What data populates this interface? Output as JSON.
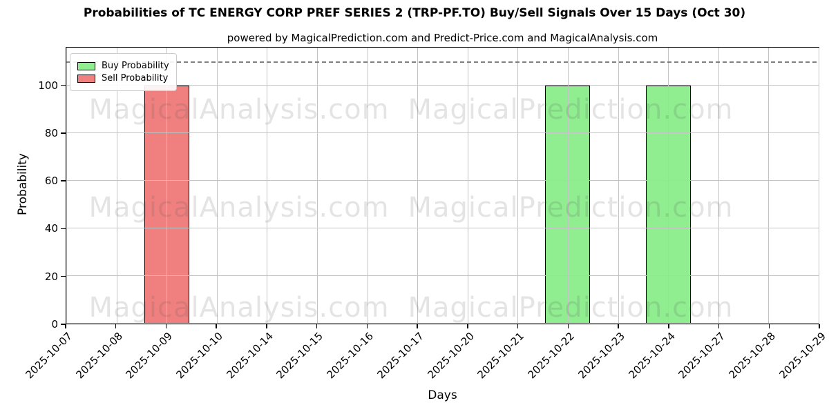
{
  "title": "Probabilities of TC ENERGY CORP PREF SERIES 2 (TRP-PF.TO) Buy/Sell Signals Over 15 Days (Oct 30)",
  "subtitle": "powered by MagicalPrediction.com and Predict-Price.com and MagicalAnalysis.com",
  "watermarks": {
    "left_text": "MagicalAnalysis.com",
    "right_text": "MagicalPrediction.com"
  },
  "legend": {
    "items": [
      {
        "label": "Buy Probability",
        "color": "#90ee90"
      },
      {
        "label": "Sell Probability",
        "color": "#f08080"
      }
    ]
  },
  "chart_data": {
    "type": "bar",
    "title": "Probabilities of TC ENERGY CORP PREF SERIES 2 (TRP-PF.TO) Buy/Sell Signals Over 15 Days (Oct 30)",
    "subtitle": "powered by MagicalPrediction.com and Predict-Price.com and MagicalAnalysis.com",
    "xlabel": "Days",
    "ylabel": "Probability",
    "categories": [
      "2025-10-07",
      "2025-10-08",
      "2025-10-09",
      "2025-10-10",
      "2025-10-14",
      "2025-10-15",
      "2025-10-16",
      "2025-10-17",
      "2025-10-20",
      "2025-10-21",
      "2025-10-22",
      "2025-10-23",
      "2025-10-24",
      "2025-10-27",
      "2025-10-28",
      "2025-10-29"
    ],
    "series": [
      {
        "name": "Buy Probability",
        "color": "#90ee90",
        "values": [
          0,
          0,
          0,
          0,
          0,
          0,
          0,
          0,
          0,
          0,
          100,
          0,
          100,
          0,
          0,
          0
        ]
      },
      {
        "name": "Sell Probability",
        "color": "#f08080",
        "values": [
          0,
          0,
          100,
          0,
          0,
          0,
          0,
          0,
          0,
          0,
          0,
          0,
          0,
          0,
          0,
          0
        ]
      }
    ],
    "yticks": [
      0,
      20,
      40,
      60,
      80,
      100
    ],
    "ylim": [
      0,
      116.1
    ],
    "dashed_line_y": 110,
    "grid": true,
    "grid_over_bars": true,
    "legend_position": "upper left",
    "bar_edge_color": "#000000",
    "grid_color": "#c3c3c3",
    "dashed_line_color": "#7f7f7f"
  }
}
